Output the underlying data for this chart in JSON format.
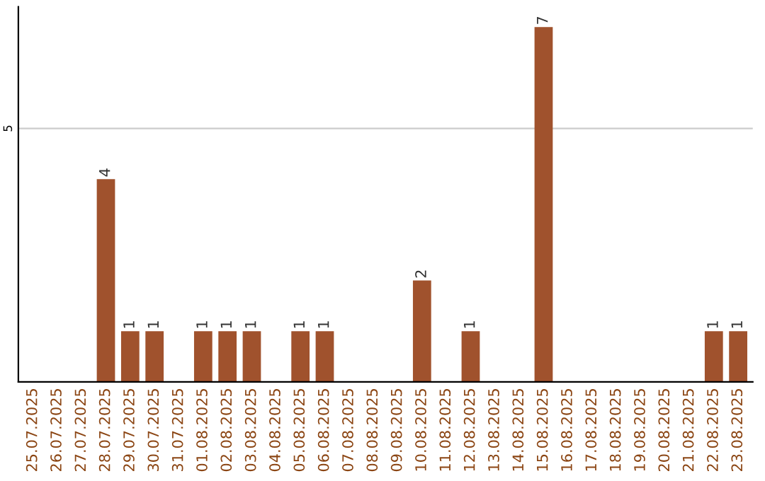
{
  "chart_data": {
    "type": "bar",
    "categories": [
      "25.07.2025",
      "26.07.2025",
      "27.07.2025",
      "28.07.2025",
      "29.07.2025",
      "30.07.2025",
      "31.07.2025",
      "01.08.2025",
      "02.08.2025",
      "03.08.2025",
      "04.08.2025",
      "05.08.2025",
      "06.08.2025",
      "07.08.2025",
      "08.08.2025",
      "09.08.2025",
      "10.08.2025",
      "11.08.2025",
      "12.08.2025",
      "13.08.2025",
      "14.08.2025",
      "15.08.2025",
      "16.08.2025",
      "17.08.2025",
      "18.08.2025",
      "19.08.2025",
      "20.08.2025",
      "21.08.2025",
      "22.08.2025",
      "23.08.2025"
    ],
    "values": [
      0,
      0,
      0,
      4,
      1,
      1,
      0,
      1,
      1,
      1,
      0,
      1,
      1,
      0,
      0,
      0,
      2,
      0,
      1,
      0,
      0,
      7,
      0,
      0,
      0,
      0,
      0,
      0,
      1,
      1
    ],
    "value_labels": [
      null,
      null,
      null,
      "4",
      "1",
      "1",
      null,
      "1",
      "1",
      "1",
      null,
      "1",
      "1",
      null,
      null,
      null,
      "2",
      null,
      "1",
      null,
      null,
      "7",
      null,
      null,
      null,
      null,
      null,
      null,
      "1",
      "1"
    ],
    "color": "#a0522d",
    "ylim": [
      0,
      7.4
    ],
    "yticks": [
      5
    ],
    "grid": "y"
  }
}
